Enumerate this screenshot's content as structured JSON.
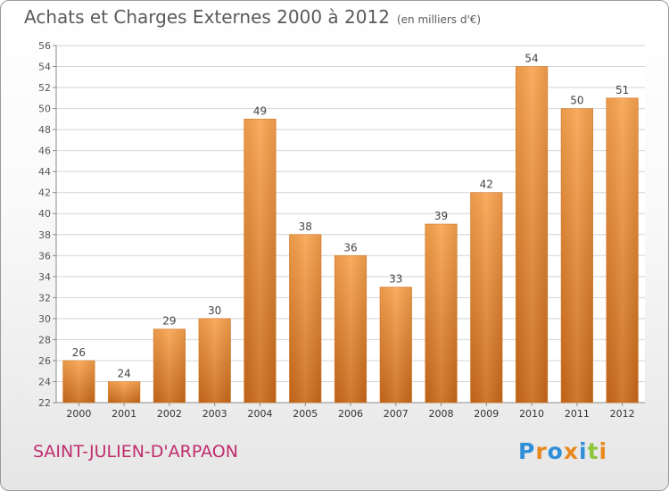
{
  "chart_data": {
    "type": "bar",
    "title": "Achats et Charges Externes 2000 à 2012",
    "unit": "(en milliers d'€)",
    "categories": [
      "2000",
      "2001",
      "2002",
      "2003",
      "2004",
      "2005",
      "2006",
      "2007",
      "2008",
      "2009",
      "2010",
      "2011",
      "2012"
    ],
    "values": [
      26,
      24,
      29,
      30,
      49,
      38,
      36,
      33,
      39,
      42,
      54,
      50,
      51
    ],
    "ylim": [
      22,
      56
    ],
    "ytick_step": 2,
    "grid": true,
    "bar_color": "#f08c2e"
  },
  "place": "SAINT-JULIEN-D'ARPAON",
  "logo": {
    "text": "Proxiti",
    "letter_colors": [
      "#2f8fd8",
      "#e8891f",
      "#2f8fd8",
      "#e8891f",
      "#2f8fd8",
      "#8cc43c",
      "#e8891f"
    ]
  }
}
